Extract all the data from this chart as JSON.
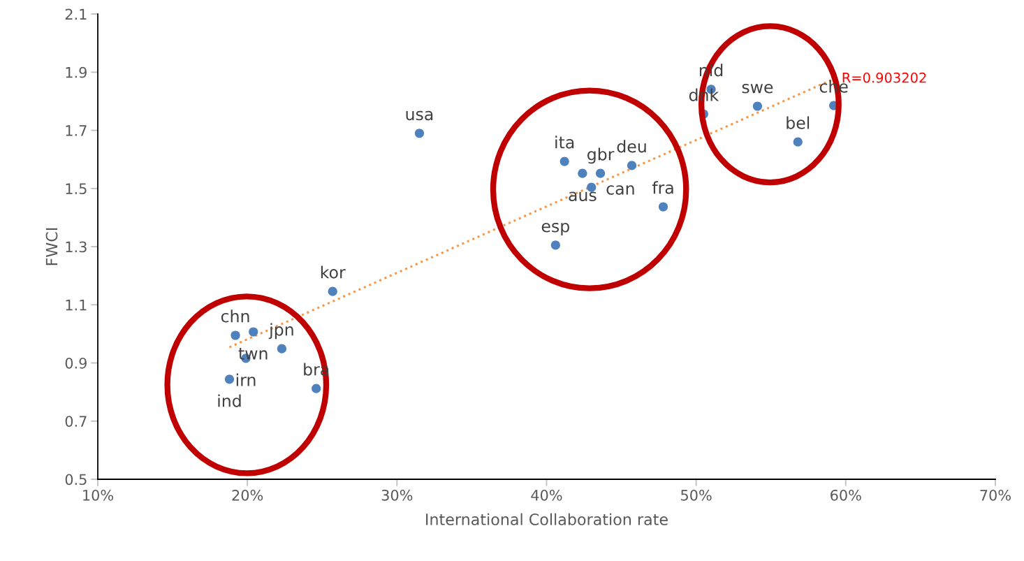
{
  "chart_data": {
    "type": "scatter",
    "xlabel": "International Collaboration rate",
    "ylabel": "FWCI",
    "xlim": [
      10,
      70
    ],
    "ylim": [
      0.5,
      2.1
    ],
    "xticks": [
      {
        "value": 10,
        "label": "10%"
      },
      {
        "value": 20,
        "label": "20%"
      },
      {
        "value": 30,
        "label": "30%"
      },
      {
        "value": 40,
        "label": "40%"
      },
      {
        "value": 50,
        "label": "50%"
      },
      {
        "value": 60,
        "label": "60%"
      },
      {
        "value": 70,
        "label": "70%"
      }
    ],
    "yticks": [
      0.5,
      0.7,
      0.9,
      1.1,
      1.3,
      1.5,
      1.7,
      1.9,
      2.1
    ],
    "grid": false,
    "legend": false,
    "series": [
      {
        "marker": "circle",
        "color": "#4f81bd",
        "x": [
          31.5,
          25.7,
          19.2,
          20.4,
          19.9,
          22.3,
          18.8,
          24.6,
          41.2,
          42.4,
          43.6,
          43.0,
          45.7,
          47.8,
          40.6,
          51.0,
          50.5,
          54.1,
          59.2,
          56.8
        ],
        "values": [
          1.69,
          1.146,
          0.995,
          1.007,
          0.916,
          0.949,
          0.844,
          0.812,
          1.593,
          1.552,
          1.552,
          1.504,
          1.579,
          1.437,
          1.305,
          1.841,
          1.756,
          1.783,
          1.785,
          1.66
        ],
        "value_labels": [
          "usa",
          "kor",
          "chn",
          "twn",
          "irn",
          "jpn",
          "ind",
          "bra",
          "ita",
          "aus",
          "gbr",
          "can",
          "deu",
          "fra",
          "esp",
          "nld",
          "dnk",
          "swe",
          "che",
          "bel"
        ]
      },
      {
        "type": "line",
        "color": "#f79646",
        "line_style": "dotted",
        "x": [
          18.8,
          59.2
        ],
        "values": [
          0.954,
          1.877
        ]
      }
    ],
    "annotations": [
      {
        "text": "R=0.903202",
        "x": 59.2,
        "y": 1.877
      }
    ]
  }
}
